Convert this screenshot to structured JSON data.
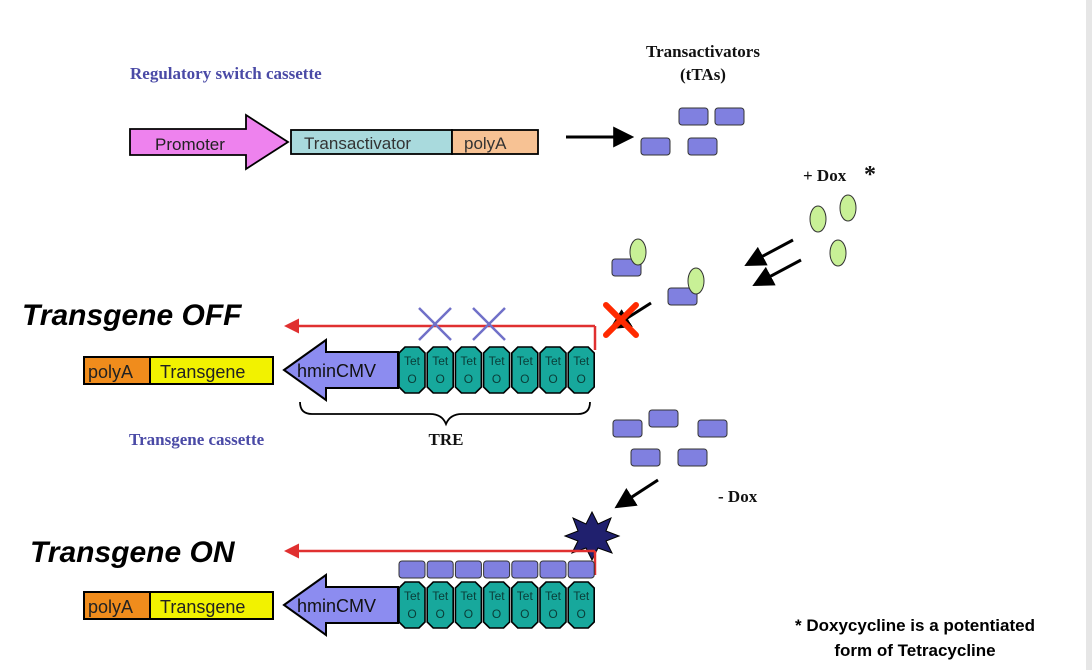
{
  "labels": {
    "regulatory_cassette": "Regulatory switch cassette",
    "transactivators_line1": "Transactivators",
    "transactivators_line2": "(tTAs)",
    "plus_dox": "+ Dox",
    "asterisk": "*",
    "minus_dox": "- Dox",
    "transgene_off": "Transgene OFF",
    "transgene_on": "Transgene ON",
    "transgene_cassette": "Transgene cassette",
    "tre": "TRE",
    "footnote_line1": "* Doxycycline is a potentiated",
    "footnote_line2": "form of Tetracycline"
  },
  "cassette": {
    "promoter": "Promoter",
    "transactivator": "Transactivator",
    "polya": "polyA"
  },
  "transgene_block": {
    "polya": "polyA",
    "transgene": "Transgene",
    "hmincmv": "hminCMV"
  },
  "tet_operator": {
    "top": "Tet",
    "bottom": "O",
    "count": 7
  },
  "colors": {
    "promoter": "#ee82ee",
    "transactivator": "#a9dadd",
    "cassette_polya": "#f7c294",
    "transgene_polya": "#f08c1c",
    "transgene": "#f2f200",
    "hmincmv": "#8c8cf0",
    "tet_operator": "#17a89c",
    "tta": "#8080e0",
    "dox": "#c8f096",
    "transcript_arrow": "#e03030",
    "x_mark": "#7070c8",
    "red_x": "#ff2a00",
    "starburst": "#20206e",
    "label_blue": "#4a4aa6"
  }
}
